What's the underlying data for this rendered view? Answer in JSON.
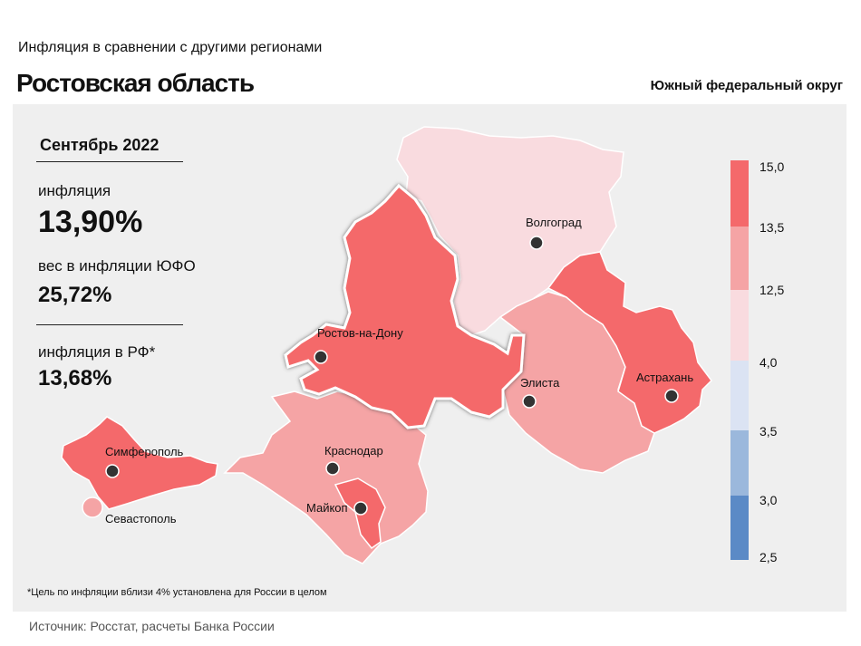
{
  "header": {
    "subtitle": "Инфляция в сравнении с другими регионами",
    "title": "Ростовская область",
    "district": "Южный федеральный округ"
  },
  "stats": {
    "period": "Сентябрь 2022",
    "inflation_label": "инфляция",
    "inflation_value": "13,90%",
    "weight_label": "вес в инфляции ЮФО",
    "weight_value": "25,72%",
    "rf_label": "инфляция в РФ*",
    "rf_value": "13,68%"
  },
  "map": {
    "cities": [
      {
        "name": "Волгоград"
      },
      {
        "name": "Ростов-на-Дону"
      },
      {
        "name": "Элиста"
      },
      {
        "name": "Астрахань"
      },
      {
        "name": "Симферополь"
      },
      {
        "name": "Краснодар"
      },
      {
        "name": "Майкоп"
      },
      {
        "name": "Севастополь"
      }
    ],
    "colors": {
      "band_13_5_15": "#f4696b",
      "band_12_5_13_5": "#f5a4a5",
      "band_4_12_5": "#f9dbdf",
      "band_3_5_4": "#dbe3f3",
      "band_3_3_5": "#9bb8dc",
      "band_2_5_3": "#5b8ac6"
    }
  },
  "legend": {
    "ticks": [
      "15,0",
      "13,5",
      "12,5",
      "4,0",
      "3,5",
      "3,0",
      "2,5"
    ]
  },
  "footer": {
    "note": "*Цель по инфляции вблизи 4% установлена для России в целом",
    "source": "Источник: Росстат, расчеты Банка России"
  }
}
